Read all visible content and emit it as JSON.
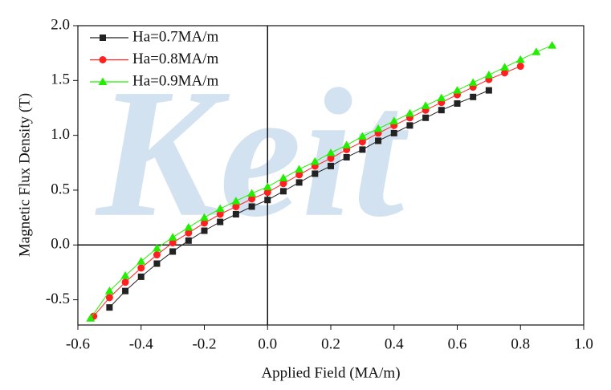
{
  "chart_data": {
    "type": "scatter",
    "watermark": "Keit",
    "xlabel": "Applied Field (MA/m)",
    "ylabel": "Magnetic Flux Density (T)",
    "xlim": [
      -0.6,
      1.0
    ],
    "ylim": [
      -0.73,
      2.0
    ],
    "xticks": [
      -0.6,
      -0.4,
      -0.2,
      {
        "value": 0,
        "label": "0.0"
      },
      0.2,
      0.4,
      0.6,
      0.8,
      {
        "value": 1,
        "label": "1.0"
      }
    ],
    "yticks": [
      -0.5,
      {
        "value": 0,
        "label": "0.0"
      },
      0.5,
      {
        "value": 1,
        "label": "1.0"
      },
      1.5,
      {
        "value": 2,
        "label": "2.0"
      }
    ],
    "zero_lines": true,
    "legend": "upper left",
    "series": [
      {
        "name": "Ha=0.7MA/m",
        "color": "#222222",
        "marker": "square",
        "x": [
          -0.5,
          -0.45,
          -0.4,
          -0.35,
          -0.3,
          -0.25,
          -0.2,
          -0.15,
          -0.1,
          -0.05,
          0,
          0.05,
          0.1,
          0.15,
          0.2,
          0.25,
          0.3,
          0.35,
          0.4,
          0.45,
          0.5,
          0.55,
          0.6,
          0.65,
          0.7
        ],
        "values": [
          -0.57,
          -0.42,
          -0.29,
          -0.17,
          -0.06,
          0.04,
          0.13,
          0.21,
          0.28,
          0.35,
          0.41,
          0.49,
          0.57,
          0.65,
          0.72,
          0.8,
          0.87,
          0.95,
          1.02,
          1.09,
          1.16,
          1.23,
          1.29,
          1.35,
          1.41
        ]
      },
      {
        "name": "Ha=0.8MA/m",
        "color": "#ff2020",
        "marker": "circle",
        "x": [
          -0.55,
          -0.5,
          -0.45,
          -0.4,
          -0.35,
          -0.3,
          -0.25,
          -0.2,
          -0.15,
          -0.1,
          -0.05,
          0,
          0.05,
          0.1,
          0.15,
          0.2,
          0.25,
          0.3,
          0.35,
          0.4,
          0.45,
          0.5,
          0.55,
          0.6,
          0.65,
          0.7,
          0.75,
          0.8
        ],
        "values": [
          -0.65,
          -0.48,
          -0.34,
          -0.21,
          -0.09,
          0.02,
          0.11,
          0.2,
          0.28,
          0.35,
          0.42,
          0.48,
          0.56,
          0.64,
          0.72,
          0.79,
          0.87,
          0.94,
          1.02,
          1.09,
          1.16,
          1.23,
          1.3,
          1.37,
          1.44,
          1.51,
          1.57,
          1.63
        ]
      },
      {
        "name": "Ha=0.9MA/m",
        "color": "#22ee00",
        "marker": "triangle",
        "x": [
          -0.56,
          -0.5,
          -0.45,
          -0.4,
          -0.35,
          -0.3,
          -0.25,
          -0.2,
          -0.15,
          -0.1,
          -0.05,
          0,
          0.05,
          0.1,
          0.15,
          0.2,
          0.25,
          0.3,
          0.35,
          0.4,
          0.45,
          0.5,
          0.55,
          0.6,
          0.65,
          0.7,
          0.75,
          0.8,
          0.85,
          0.9
        ],
        "values": [
          -0.67,
          -0.42,
          -0.28,
          -0.15,
          -0.03,
          0.07,
          0.16,
          0.25,
          0.33,
          0.4,
          0.47,
          0.53,
          0.61,
          0.69,
          0.76,
          0.84,
          0.91,
          0.99,
          1.06,
          1.13,
          1.2,
          1.27,
          1.34,
          1.41,
          1.48,
          1.55,
          1.62,
          1.69,
          1.76,
          1.82
        ]
      }
    ]
  }
}
